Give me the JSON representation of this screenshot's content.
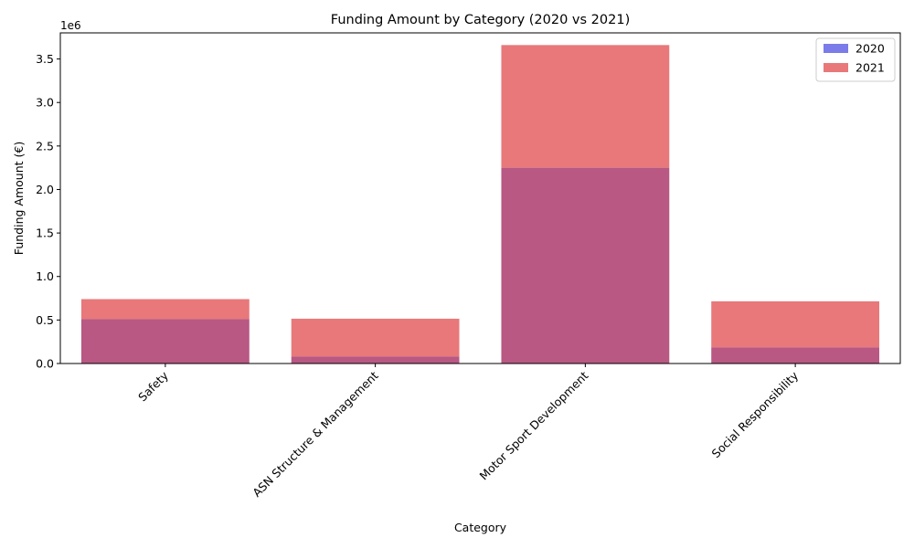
{
  "chart_data": {
    "type": "bar",
    "title": "Funding Amount by Category (2020 vs 2021)",
    "xlabel": "Category",
    "ylabel": "Funding Amount (€)",
    "y_offset_label": "1e6",
    "categories": [
      "Safety",
      "ASN Structure & Management",
      "Motor Sport Development",
      "Social Responsibility"
    ],
    "series": [
      {
        "name": "2020",
        "color": "#7b7bea",
        "values": [
          510000,
          80000,
          2250000,
          185000
        ]
      },
      {
        "name": "2021",
        "color": "#e8787a",
        "values": [
          740000,
          515000,
          3660000,
          715000
        ]
      }
    ],
    "overlap_color": "#b85883",
    "ylim": [
      0,
      3800000
    ],
    "yticks": [
      0,
      500000,
      1000000,
      1500000,
      2000000,
      2500000,
      3000000,
      3500000
    ],
    "ytick_labels": [
      "0.0",
      "0.5",
      "1.0",
      "1.5",
      "2.0",
      "2.5",
      "3.0",
      "3.5"
    ],
    "legend_position": "top-right",
    "grid": false
  }
}
